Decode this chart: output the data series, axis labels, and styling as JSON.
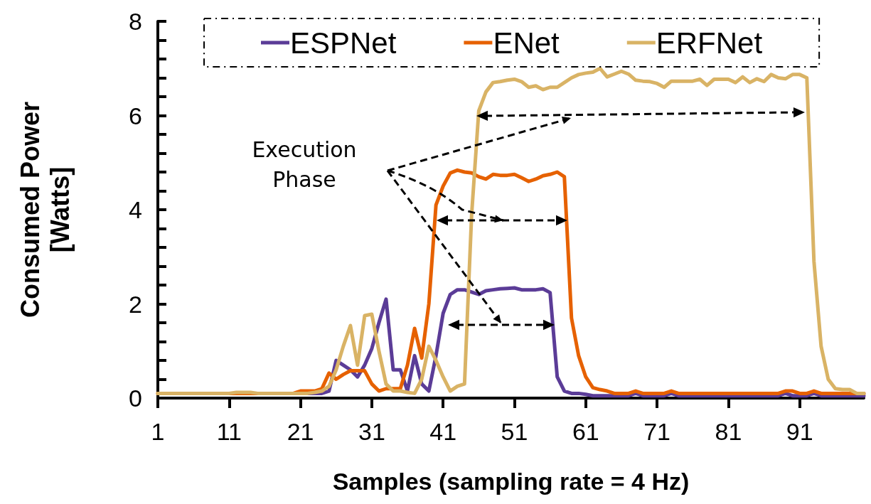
{
  "chart_data": {
    "type": "line",
    "xlabel": "Samples (sampling rate = 4 Hz)",
    "ylabel": "Consumed Power [Watts]",
    "annotations": [
      "Execution Phase"
    ],
    "x": [
      1,
      2,
      3,
      4,
      5,
      6,
      7,
      8,
      9,
      10,
      11,
      12,
      13,
      14,
      15,
      16,
      17,
      18,
      19,
      20,
      21,
      22,
      23,
      24,
      25,
      26,
      27,
      28,
      29,
      30,
      31,
      32,
      33,
      34,
      35,
      36,
      37,
      38,
      39,
      40,
      41,
      42,
      43,
      44,
      45,
      46,
      47,
      48,
      49,
      50,
      51,
      52,
      53,
      54,
      55,
      56,
      57,
      58,
      59,
      60,
      61,
      62,
      63,
      64,
      65,
      66,
      67,
      68,
      69,
      70,
      71,
      72,
      73,
      74,
      75,
      76,
      77,
      78,
      79,
      80,
      81,
      82,
      83,
      84,
      85,
      86,
      87,
      88,
      89,
      90,
      91,
      92,
      93,
      94,
      95,
      96,
      97,
      98,
      99,
      100
    ],
    "xlim": [
      1,
      100
    ],
    "xticks": [
      1,
      11,
      21,
      31,
      41,
      51,
      61,
      71,
      81,
      91
    ],
    "ylim": [
      0,
      8
    ],
    "yticks": [
      0,
      {
        "value": 0.4,
        "label": null
      },
      {
        "value": 0.8,
        "label": null
      },
      {
        "value": 1.2,
        "label": null
      },
      {
        "value": 1.6,
        "label": null
      },
      2,
      {
        "value": 2.4,
        "label": null
      },
      {
        "value": 2.8,
        "label": null
      },
      {
        "value": 3.2,
        "label": null
      },
      {
        "value": 3.6,
        "label": null
      },
      4,
      {
        "value": 4.4,
        "label": null
      },
      {
        "value": 4.8,
        "label": null
      },
      {
        "value": 5.2,
        "label": null
      },
      {
        "value": 5.6,
        "label": null
      },
      6,
      {
        "value": 6.4,
        "label": null
      },
      {
        "value": 6.8,
        "label": null
      },
      {
        "value": 7.2,
        "label": null
      },
      {
        "value": 7.6,
        "label": null
      },
      8
    ],
    "grid": false,
    "legend": "top",
    "marker": "none",
    "line_style": "solid",
    "series": [
      {
        "name": "ESPNet",
        "color": "#5b3c97",
        "values": [
          null,
          null,
          null,
          null,
          null,
          null,
          null,
          null,
          null,
          null,
          null,
          null,
          null,
          null,
          null,
          null,
          null,
          null,
          null,
          null,
          null,
          0.1,
          0.1,
          0.1,
          0.15,
          0.8,
          0.7,
          0.6,
          0.45,
          0.7,
          1.05,
          1.6,
          2.1,
          0.6,
          0.6,
          0.15,
          0.9,
          0.3,
          0.15,
          0.9,
          1.8,
          2.2,
          2.3,
          2.3,
          2.25,
          2.2,
          2.28,
          2.3,
          2.32,
          2.33,
          2.34,
          2.3,
          2.3,
          2.3,
          2.32,
          2.24,
          0.45,
          0.15,
          0.1,
          0.1,
          0.08,
          0.05,
          0.05,
          0.05,
          0.05,
          0.05,
          0.05,
          0.1,
          0.05,
          0.05,
          0.05,
          0.05,
          0.1,
          0.05,
          0.05,
          0.05,
          0.05,
          0.05,
          0.05,
          0.05,
          0.05,
          0.05,
          0.05,
          0.05,
          0.05,
          0.05,
          0.05,
          0.05,
          0.1,
          0.05,
          0.05,
          0.05,
          0.1,
          0.05,
          0.05,
          0.05,
          0.05,
          0.05,
          0.05,
          0.05
        ]
      },
      {
        "name": "ENet",
        "color": "#e66100",
        "values": [
          0.1,
          0.1,
          0.1,
          0.1,
          0.1,
          0.1,
          0.1,
          0.1,
          0.1,
          0.1,
          0.1,
          0.1,
          0.1,
          0.1,
          0.1,
          0.1,
          0.1,
          0.1,
          0.1,
          0.1,
          0.15,
          0.15,
          0.15,
          0.2,
          0.53,
          0.4,
          0.5,
          0.58,
          0.58,
          0.58,
          0.3,
          0.15,
          0.2,
          0.2,
          0.2,
          0.7,
          1.48,
          0.85,
          2.0,
          4.1,
          4.5,
          4.78,
          4.84,
          4.8,
          4.78,
          4.7,
          4.65,
          4.75,
          4.73,
          4.73,
          4.75,
          4.68,
          4.6,
          4.65,
          4.72,
          4.75,
          4.8,
          4.7,
          1.7,
          0.9,
          0.45,
          0.22,
          0.18,
          0.15,
          0.1,
          0.1,
          0.1,
          0.15,
          0.1,
          0.1,
          0.1,
          0.1,
          0.15,
          0.1,
          0.1,
          0.1,
          0.1,
          0.1,
          0.1,
          0.1,
          0.1,
          0.1,
          0.1,
          0.1,
          0.1,
          0.1,
          0.1,
          0.1,
          0.15,
          0.15,
          0.1,
          0.1,
          0.15,
          0.1,
          0.1,
          0.1,
          0.1,
          0.1,
          0.1,
          0.1
        ]
      },
      {
        "name": "ERFNet",
        "color": "#d9b365",
        "values": [
          0.1,
          0.1,
          0.1,
          0.1,
          0.1,
          0.1,
          0.1,
          0.1,
          0.1,
          0.1,
          0.1,
          0.12,
          0.12,
          0.12,
          0.1,
          0.1,
          0.1,
          0.1,
          0.1,
          0.1,
          0.1,
          0.1,
          0.12,
          0.15,
          0.25,
          0.6,
          1.1,
          1.54,
          0.7,
          1.75,
          1.78,
          1.0,
          0.3,
          0.15,
          0.15,
          0.12,
          0.1,
          0.4,
          1.1,
          0.8,
          0.45,
          0.15,
          0.25,
          0.3,
          3.9,
          6.1,
          6.5,
          6.7,
          6.72,
          6.75,
          6.77,
          6.72,
          6.6,
          6.63,
          6.55,
          6.6,
          6.6,
          6.7,
          6.8,
          6.87,
          6.9,
          6.92,
          7.0,
          6.82,
          6.88,
          6.94,
          6.88,
          6.75,
          6.73,
          6.72,
          6.68,
          6.6,
          6.73,
          6.73,
          6.73,
          6.73,
          6.77,
          6.64,
          6.77,
          6.77,
          6.77,
          6.7,
          6.82,
          6.7,
          6.78,
          6.72,
          6.87,
          6.8,
          6.78,
          6.87,
          6.87,
          6.8,
          2.9,
          1.1,
          0.4,
          0.2,
          0.18,
          0.18,
          0.1,
          0.1
        ]
      }
    ]
  }
}
